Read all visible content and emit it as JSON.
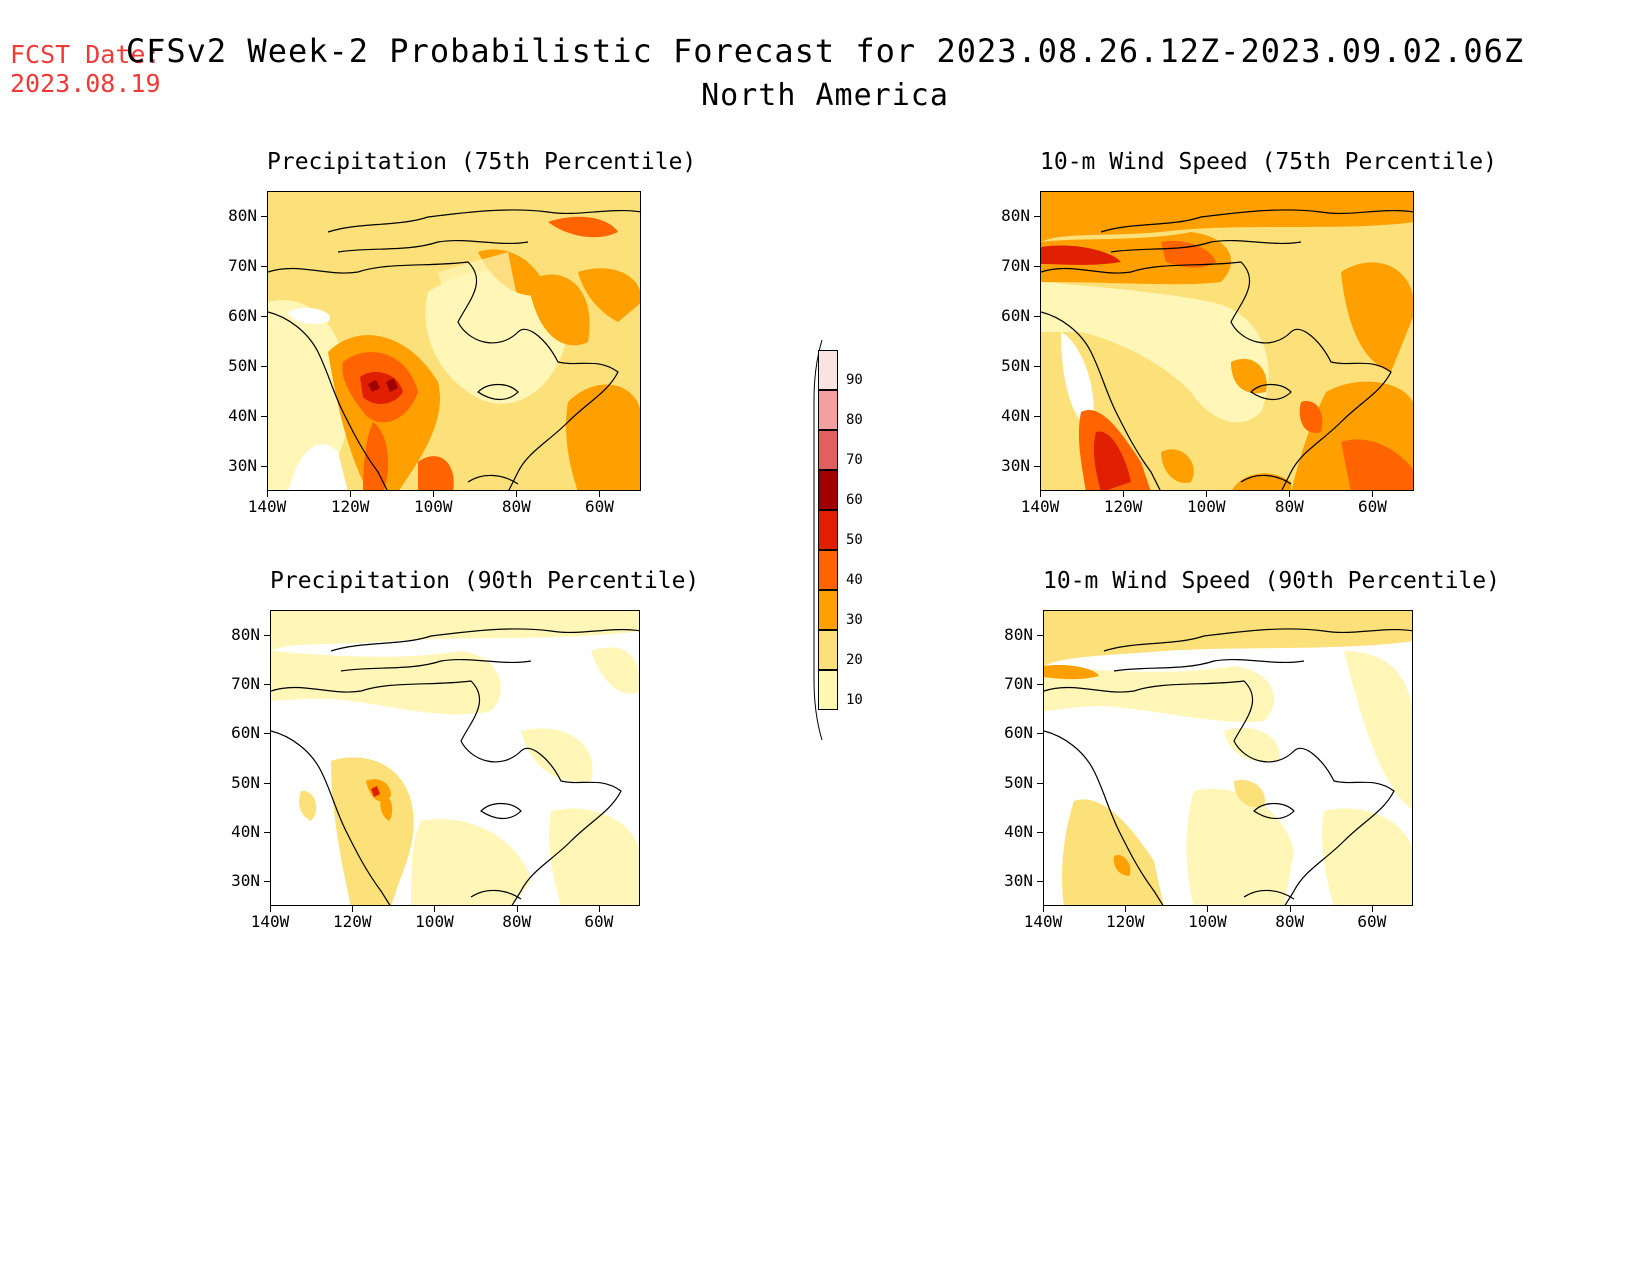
{
  "fcst_date": {
    "label": "FCST Date:",
    "value": "2023.08.19"
  },
  "title": "CFSv2 Week-2 Probabilistic Forecast for 2023.08.26.12Z-2023.09.02.06Z",
  "subtitle": "North America",
  "panels": [
    {
      "id": "precip75",
      "title": "Precipitation (75th Percentile)"
    },
    {
      "id": "wind75",
      "title": "10-m Wind Speed (75th Percentile)"
    },
    {
      "id": "precip90",
      "title": "Precipitation (90th Percentile)"
    },
    {
      "id": "wind90",
      "title": "10-m Wind Speed (90th Percentile)"
    }
  ],
  "lat_labels": [
    "80N",
    "70N",
    "60N",
    "50N",
    "40N",
    "30N"
  ],
  "lon_labels": [
    "140W",
    "120W",
    "100W",
    "80W",
    "60W"
  ],
  "legend": {
    "labels": [
      "90",
      "80",
      "70",
      "60",
      "50",
      "40",
      "30",
      "20",
      "10"
    ],
    "colors": [
      "#fbe3e3",
      "#f4a0a0",
      "#e06060",
      "#a00000",
      "#e01e00",
      "#ff6400",
      "#ffa000",
      "#fce17a",
      "#fff8b0"
    ]
  },
  "colors": {
    "c10": "#fff6b8",
    "c20": "#fce17a",
    "c30": "#ffa000",
    "c40": "#ff6400",
    "c50": "#e01e00",
    "c60": "#a00000"
  }
}
